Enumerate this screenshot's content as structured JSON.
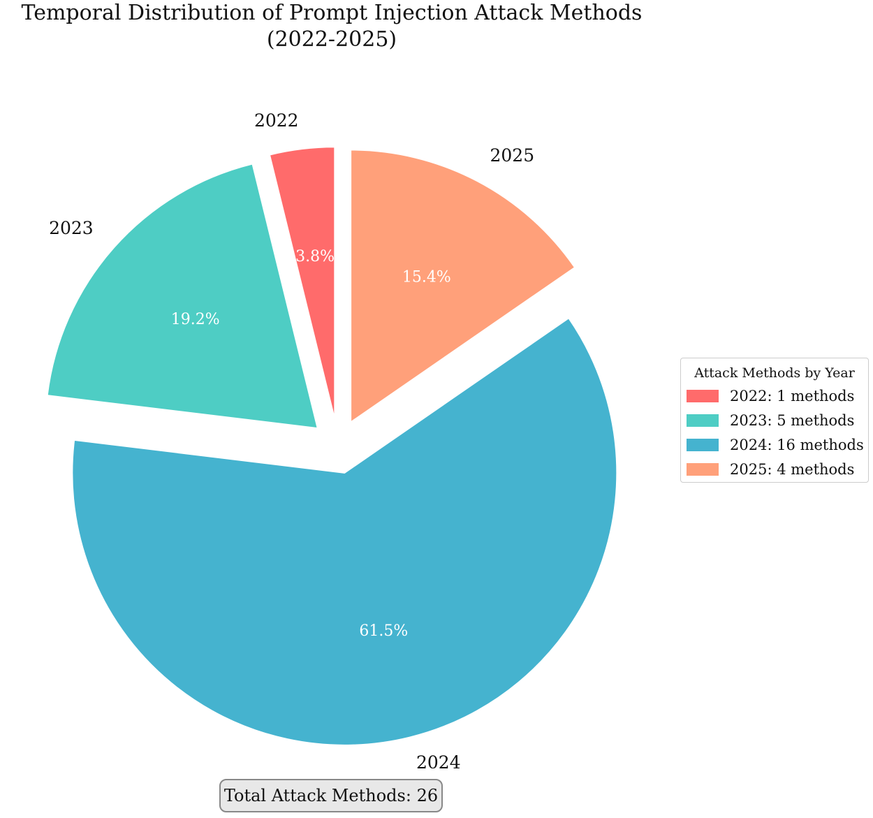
{
  "title": {
    "line1": "Temporal Distribution of Prompt Injection Attack Methods",
    "line2": "(2022-2025)"
  },
  "chart_data": {
    "type": "pie",
    "title": "Temporal Distribution of Prompt Injection Attack Methods (2022-2025)",
    "categories": [
      "2022",
      "2023",
      "2024",
      "2025"
    ],
    "values": [
      1,
      5,
      16,
      4
    ],
    "percent_labels": [
      "3.8%",
      "19.2%",
      "61.5%",
      "15.4%"
    ],
    "colors": [
      "#ff6b6b",
      "#4ecdc4",
      "#45b3cf",
      "#ffa07a"
    ],
    "exploded": true,
    "legend": {
      "title": "Attack Methods by Year",
      "placement": "right",
      "entries": [
        "2022: 1 methods",
        "2023: 5 methods",
        "2024: 16 methods",
        "2025: 4 methods"
      ]
    },
    "annotation": "Total Attack Methods: 26"
  }
}
